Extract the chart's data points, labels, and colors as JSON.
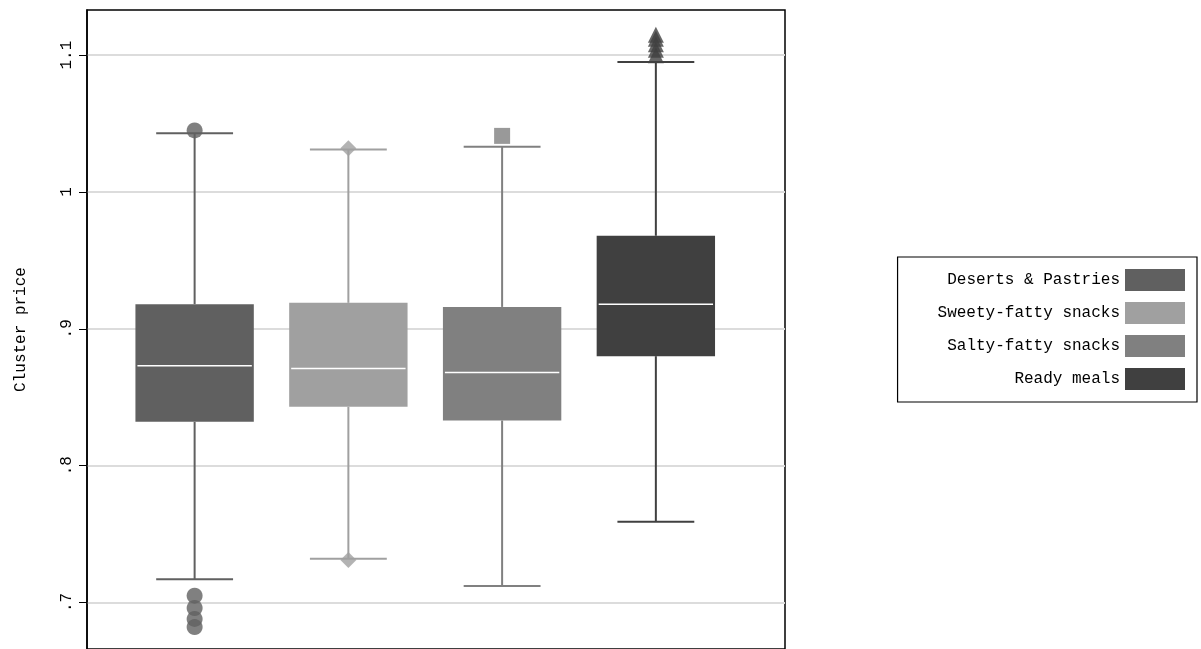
{
  "chart_data": {
    "type": "box",
    "ylabel": "Cluster price",
    "categories": [
      null
    ],
    "ylim": [
      0.666,
      1.133
    ],
    "yticks": [
      {
        "value": 0.7,
        "label": ".7"
      },
      {
        "value": 0.8,
        "label": ".8"
      },
      {
        "value": 0.9,
        "label": ".9"
      },
      1,
      1.1
    ],
    "grid": "y",
    "legend": "right",
    "tick_labels": "y",
    "series": [
      {
        "name": "Deserts & Pastries",
        "color": "#606060",
        "marker": "circle",
        "boxes": [
          {
            "low": 0.717,
            "q1": 0.832,
            "median": 0.873,
            "q3": 0.918,
            "high": 1.043,
            "outliers": [
              1.045,
              0.705,
              0.696,
              0.688,
              0.682
            ]
          }
        ]
      },
      {
        "name": "Sweety-fatty snacks",
        "color": "#a0a0a0",
        "marker": "diamond",
        "boxes": [
          {
            "low": 0.732,
            "q1": 0.843,
            "median": 0.871,
            "q3": 0.919,
            "high": 1.031,
            "outliers": [
              1.032,
              0.731
            ]
          }
        ]
      },
      {
        "name": "Salty-fatty snacks",
        "color": "#808080",
        "marker": "square",
        "boxes": [
          {
            "low": 0.712,
            "q1": 0.833,
            "median": 0.868,
            "q3": 0.916,
            "high": 1.033,
            "outliers": [
              1.041
            ]
          }
        ]
      },
      {
        "name": "Ready meals",
        "color": "#404040",
        "marker": "triangle",
        "boxes": [
          {
            "low": 0.759,
            "q1": 0.88,
            "median": 0.918,
            "q3": 0.968,
            "high": 1.095,
            "outliers": [
              1.1,
              1.104,
              1.108,
              1.112,
              1.115
            ]
          }
        ]
      }
    ]
  }
}
